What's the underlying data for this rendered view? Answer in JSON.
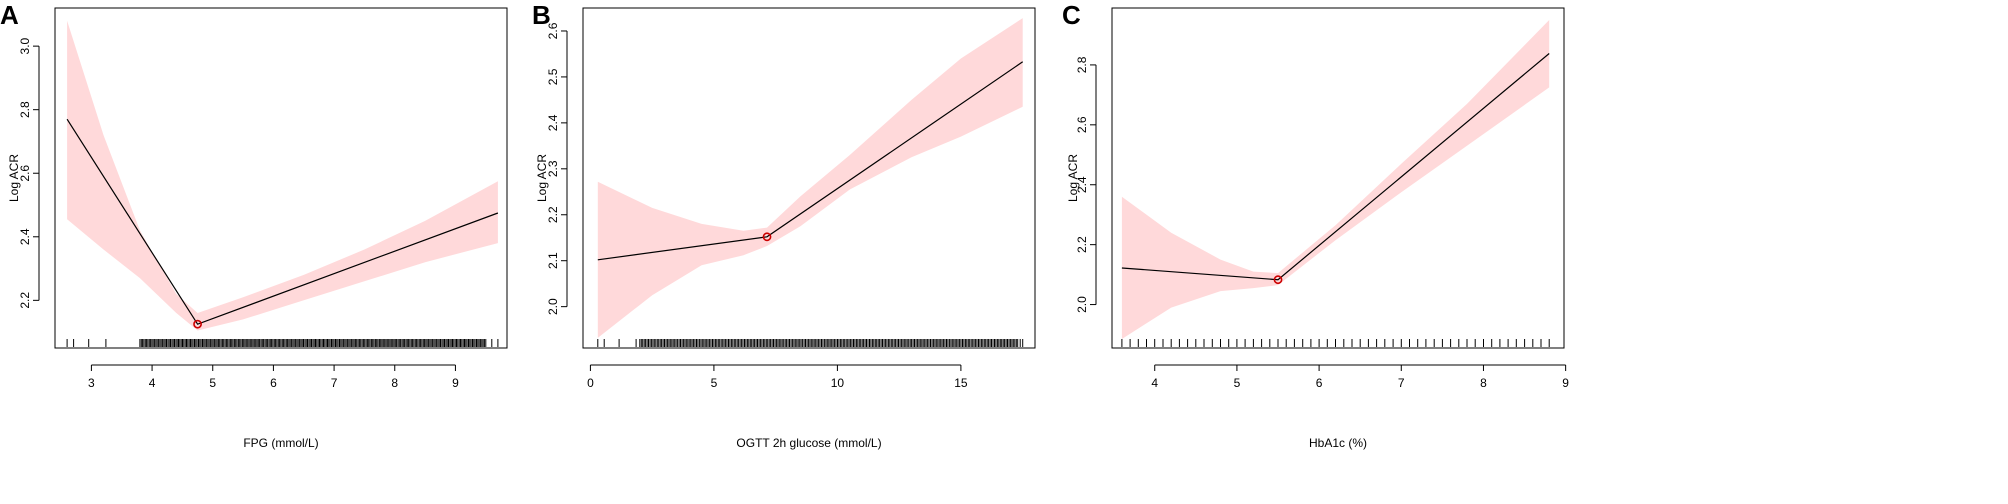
{
  "chart_data": [
    {
      "panel": "A",
      "type": "line",
      "xlabel": "FPG (mmol/L)",
      "ylabel": "Log ACR",
      "xlim": [
        2.4,
        9.85
      ],
      "ylim": [
        2.05,
        3.12
      ],
      "xticks": [
        3,
        4,
        5,
        6,
        7,
        8,
        9
      ],
      "yticks": [
        2.2,
        2.4,
        2.6,
        2.8,
        3.0
      ],
      "tick_labels_x": [
        "3",
        "4",
        "5",
        "6",
        "7",
        "8",
        "9"
      ],
      "tick_labels_y": [
        "2.2",
        "2.4",
        "2.6",
        "2.8",
        "3.0"
      ],
      "series": [
        {
          "x": [
            2.6,
            4.75,
            9.7
          ],
          "y": [
            2.77,
            2.125,
            2.475
          ]
        }
      ],
      "ci_upper": {
        "x": [
          2.6,
          3.2,
          3.8,
          4.4,
          4.75,
          5.5,
          6.5,
          7.5,
          8.5,
          9.7
        ],
        "y": [
          3.08,
          2.72,
          2.42,
          2.22,
          2.16,
          2.21,
          2.28,
          2.36,
          2.45,
          2.575
        ]
      },
      "ci_lower": {
        "x": [
          2.6,
          3.2,
          3.8,
          4.4,
          4.75,
          5.5,
          6.5,
          7.5,
          8.5,
          9.7
        ],
        "y": [
          2.455,
          2.36,
          2.27,
          2.16,
          2.105,
          2.14,
          2.2,
          2.26,
          2.32,
          2.38
        ]
      },
      "knot": {
        "x": 4.75,
        "y": 2.125
      },
      "rug": {
        "start": 2.6,
        "end": 9.7,
        "dense_from": 3.8,
        "dense_to": 9.5
      }
    },
    {
      "panel": "B",
      "type": "line",
      "xlabel": "OGTT 2h glucose (mmol/L)",
      "ylabel": "Log ACR",
      "xlim": [
        -0.3,
        18.0
      ],
      "ylim": [
        1.91,
        2.65
      ],
      "xticks": [
        0,
        5,
        10,
        15
      ],
      "yticks": [
        2.0,
        2.1,
        2.2,
        2.3,
        2.4,
        2.5,
        2.6
      ],
      "tick_labels_x": [
        "0",
        "5",
        "10",
        "15"
      ],
      "tick_labels_y": [
        "2.0",
        "2.1",
        "2.2",
        "2.3",
        "2.4",
        "2.5",
        "2.6"
      ],
      "series": [
        {
          "x": [
            0.3,
            7.15,
            17.5
          ],
          "y": [
            2.102,
            2.152,
            2.533
          ]
        }
      ],
      "ci_upper": {
        "x": [
          0.3,
          2.5,
          4.5,
          6.2,
          7.15,
          8.5,
          10.5,
          13,
          15,
          17.5
        ],
        "y": [
          2.272,
          2.215,
          2.18,
          2.165,
          2.172,
          2.24,
          2.33,
          2.45,
          2.54,
          2.628
        ]
      },
      "ci_lower": {
        "x": [
          0.3,
          2.5,
          4.5,
          6.2,
          7.15,
          8.5,
          10.5,
          13,
          15,
          17.5
        ],
        "y": [
          1.932,
          2.025,
          2.09,
          2.112,
          2.132,
          2.175,
          2.255,
          2.325,
          2.37,
          2.435
        ]
      },
      "knot": {
        "x": 7.15,
        "y": 2.152
      },
      "rug": {
        "start": 0.3,
        "end": 17.5,
        "dense_from": 2.0,
        "dense_to": 17.3
      }
    },
    {
      "panel": "C",
      "type": "line",
      "xlabel": "HbA1c (%)",
      "ylabel": "Log ACR",
      "xlim": [
        3.48,
        8.98
      ],
      "ylim": [
        1.855,
        2.99
      ],
      "xticks": [
        4,
        5,
        6,
        7,
        8,
        9
      ],
      "yticks": [
        2.0,
        2.2,
        2.4,
        2.6,
        2.8
      ],
      "tick_labels_x": [
        "4",
        "5",
        "6",
        "7",
        "8",
        "9"
      ],
      "tick_labels_y": [
        "2.0",
        "2.2",
        "2.4",
        "2.6",
        "2.8"
      ],
      "series": [
        {
          "x": [
            3.6,
            5.5,
            8.8
          ],
          "y": [
            2.122,
            2.083,
            2.838
          ]
        }
      ],
      "ci_upper": {
        "x": [
          3.6,
          4.2,
          4.8,
          5.2,
          5.5,
          6.2,
          7.0,
          7.8,
          8.8
        ],
        "y": [
          2.36,
          2.24,
          2.15,
          2.11,
          2.105,
          2.265,
          2.47,
          2.67,
          2.95
        ]
      },
      "ci_lower": {
        "x": [
          3.6,
          4.2,
          4.8,
          5.2,
          5.5,
          6.2,
          7.0,
          7.8,
          8.8
        ],
        "y": [
          1.885,
          1.99,
          2.045,
          2.055,
          2.065,
          2.215,
          2.375,
          2.53,
          2.725
        ]
      },
      "knot": {
        "x": 5.5,
        "y": 2.083
      },
      "rug": {
        "start": 3.6,
        "end": 8.8,
        "step": 0.1
      }
    }
  ],
  "colors": {
    "ci_band": "#ffd9da",
    "line": "#000000",
    "knot": "#cc0000",
    "axis": "#000000"
  }
}
